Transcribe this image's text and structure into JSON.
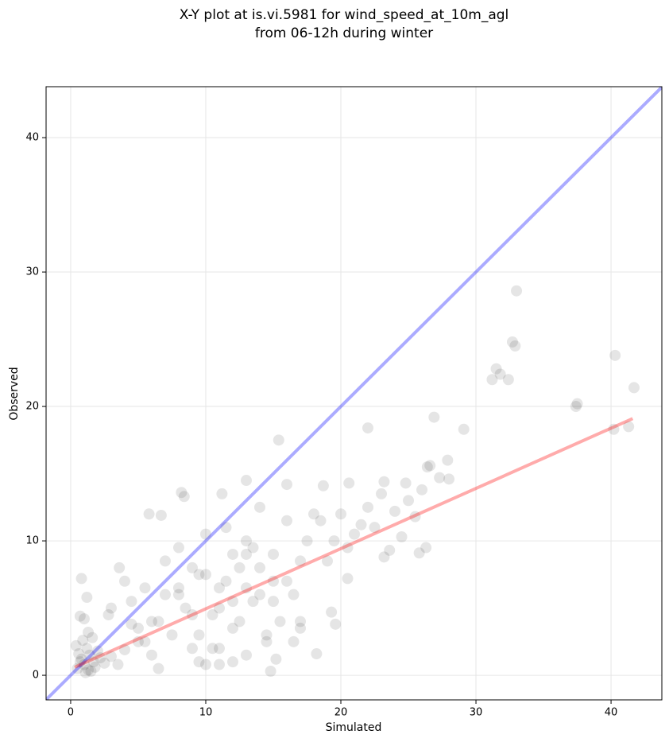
{
  "chart_data": {
    "type": "scatter",
    "title": [
      "X-Y plot at is.vi.5981 for wind_speed_at_10m_agl",
      "from 06-12h during winter"
    ],
    "xlabel": "Simulated",
    "ylabel": "Observed",
    "xlim": [
      -1.82,
      43.76
    ],
    "ylim": [
      -1.83,
      43.79
    ],
    "xticks": [
      0,
      10,
      20,
      30,
      40
    ],
    "yticks": [
      0,
      10,
      20,
      30,
      40
    ],
    "grid": true,
    "point_color": "#000000",
    "point_opacity": 0.1,
    "x": [
      33,
      32.7,
      32.9,
      31.5,
      31.2,
      31.8,
      32.4,
      40.3,
      41.7,
      37.5,
      37.4,
      40.2,
      41.3,
      26.9,
      29.1,
      22,
      15.4,
      27.9,
      26.6,
      26.4,
      28,
      27.3,
      24.8,
      23.2,
      20.6,
      13,
      11.2,
      8.2,
      8.4,
      18.7,
      16,
      25.8,
      26.3,
      23.2,
      23.6,
      20.5,
      19.6,
      19.3,
      18.2,
      14.8,
      15.2,
      5.8,
      6.7,
      0.8,
      1.2,
      3.6,
      0.7,
      0.5,
      0.8,
      1,
      1.2,
      1.4,
      1.5,
      1.7,
      2,
      0.9,
      1.1,
      1.3,
      0.6,
      1.8,
      2.2,
      0.4,
      1.6,
      2.5,
      3,
      3.5,
      4,
      2.8,
      1,
      1.3,
      0.7,
      4.5,
      5,
      5.5,
      6,
      6.5,
      7,
      7.5,
      8,
      8.5,
      9,
      9.5,
      10,
      10.5,
      11,
      11.5,
      12,
      12.5,
      13,
      13.5,
      14,
      14.5,
      15,
      15.5,
      16,
      16.5,
      17,
      17.5,
      18,
      8,
      9,
      10,
      11,
      12,
      13,
      14,
      15,
      16,
      17,
      9.5,
      10.5,
      11.5,
      12.5,
      13.5,
      14.5,
      12,
      13,
      11,
      10,
      14,
      15,
      7,
      6,
      5,
      4,
      3,
      9,
      8,
      12,
      18.5,
      19,
      19.5,
      20,
      21,
      22,
      22.5,
      23,
      24,
      24.5,
      25,
      25.5,
      26,
      21.5,
      20.5,
      17,
      16.5,
      13,
      11,
      9.5,
      6.5,
      5.5,
      4.5
    ],
    "y": [
      28.6,
      24.8,
      24.5,
      22.8,
      22,
      22.4,
      22,
      23.8,
      21.4,
      20.2,
      20,
      18.3,
      18.5,
      19.2,
      18.3,
      18.4,
      17.5,
      16,
      15.6,
      15.5,
      14.6,
      14.7,
      14.3,
      14.4,
      14.3,
      14.5,
      13.5,
      13.6,
      13.3,
      14.1,
      14.2,
      9.1,
      9.5,
      8.8,
      9.3,
      7.2,
      3.8,
      4.7,
      1.6,
      0.3,
      1.2,
      12,
      11.9,
      7.2,
      5.8,
      8,
      4.4,
      0.5,
      1.2,
      0.8,
      2,
      1.5,
      0.3,
      1,
      1.8,
      2.6,
      0.2,
      3.2,
      1.6,
      0.6,
      1.3,
      2.2,
      2.8,
      0.9,
      1.4,
      0.8,
      1.9,
      4.5,
      4.2,
      0.4,
      1,
      5.5,
      2.5,
      6.5,
      1.5,
      4,
      8.5,
      3,
      9.5,
      5,
      2,
      7.5,
      10.5,
      4.5,
      6.5,
      11,
      3.5,
      8,
      9,
      5.5,
      12.5,
      3,
      7,
      4,
      11.5,
      6,
      3.5,
      10,
      12,
      6,
      4.5,
      7.5,
      5,
      9,
      6.5,
      8,
      5.5,
      7,
      8.5,
      3,
      2,
      7,
      4,
      9.5,
      2.5,
      1,
      10,
      2,
      0.8,
      6,
      9,
      6,
      4,
      3.5,
      7,
      5,
      8,
      6.5,
      5.5,
      11.5,
      8.5,
      10,
      12,
      10.5,
      12.5,
      11,
      13.5,
      12.2,
      10.3,
      13,
      11.8,
      13.8,
      11.2,
      9.5,
      4,
      2.5,
      1.5,
      0.8,
      1,
      0.5,
      2.5,
      3.8
    ],
    "lines": [
      {
        "color": "#0000ff",
        "x": [
          -1.82,
          43.76
        ],
        "y": [
          -1.82,
          43.76
        ]
      },
      {
        "color": "#ff0000",
        "x": [
          0.3,
          41.6
        ],
        "y": [
          0.6,
          19.1
        ]
      }
    ]
  }
}
